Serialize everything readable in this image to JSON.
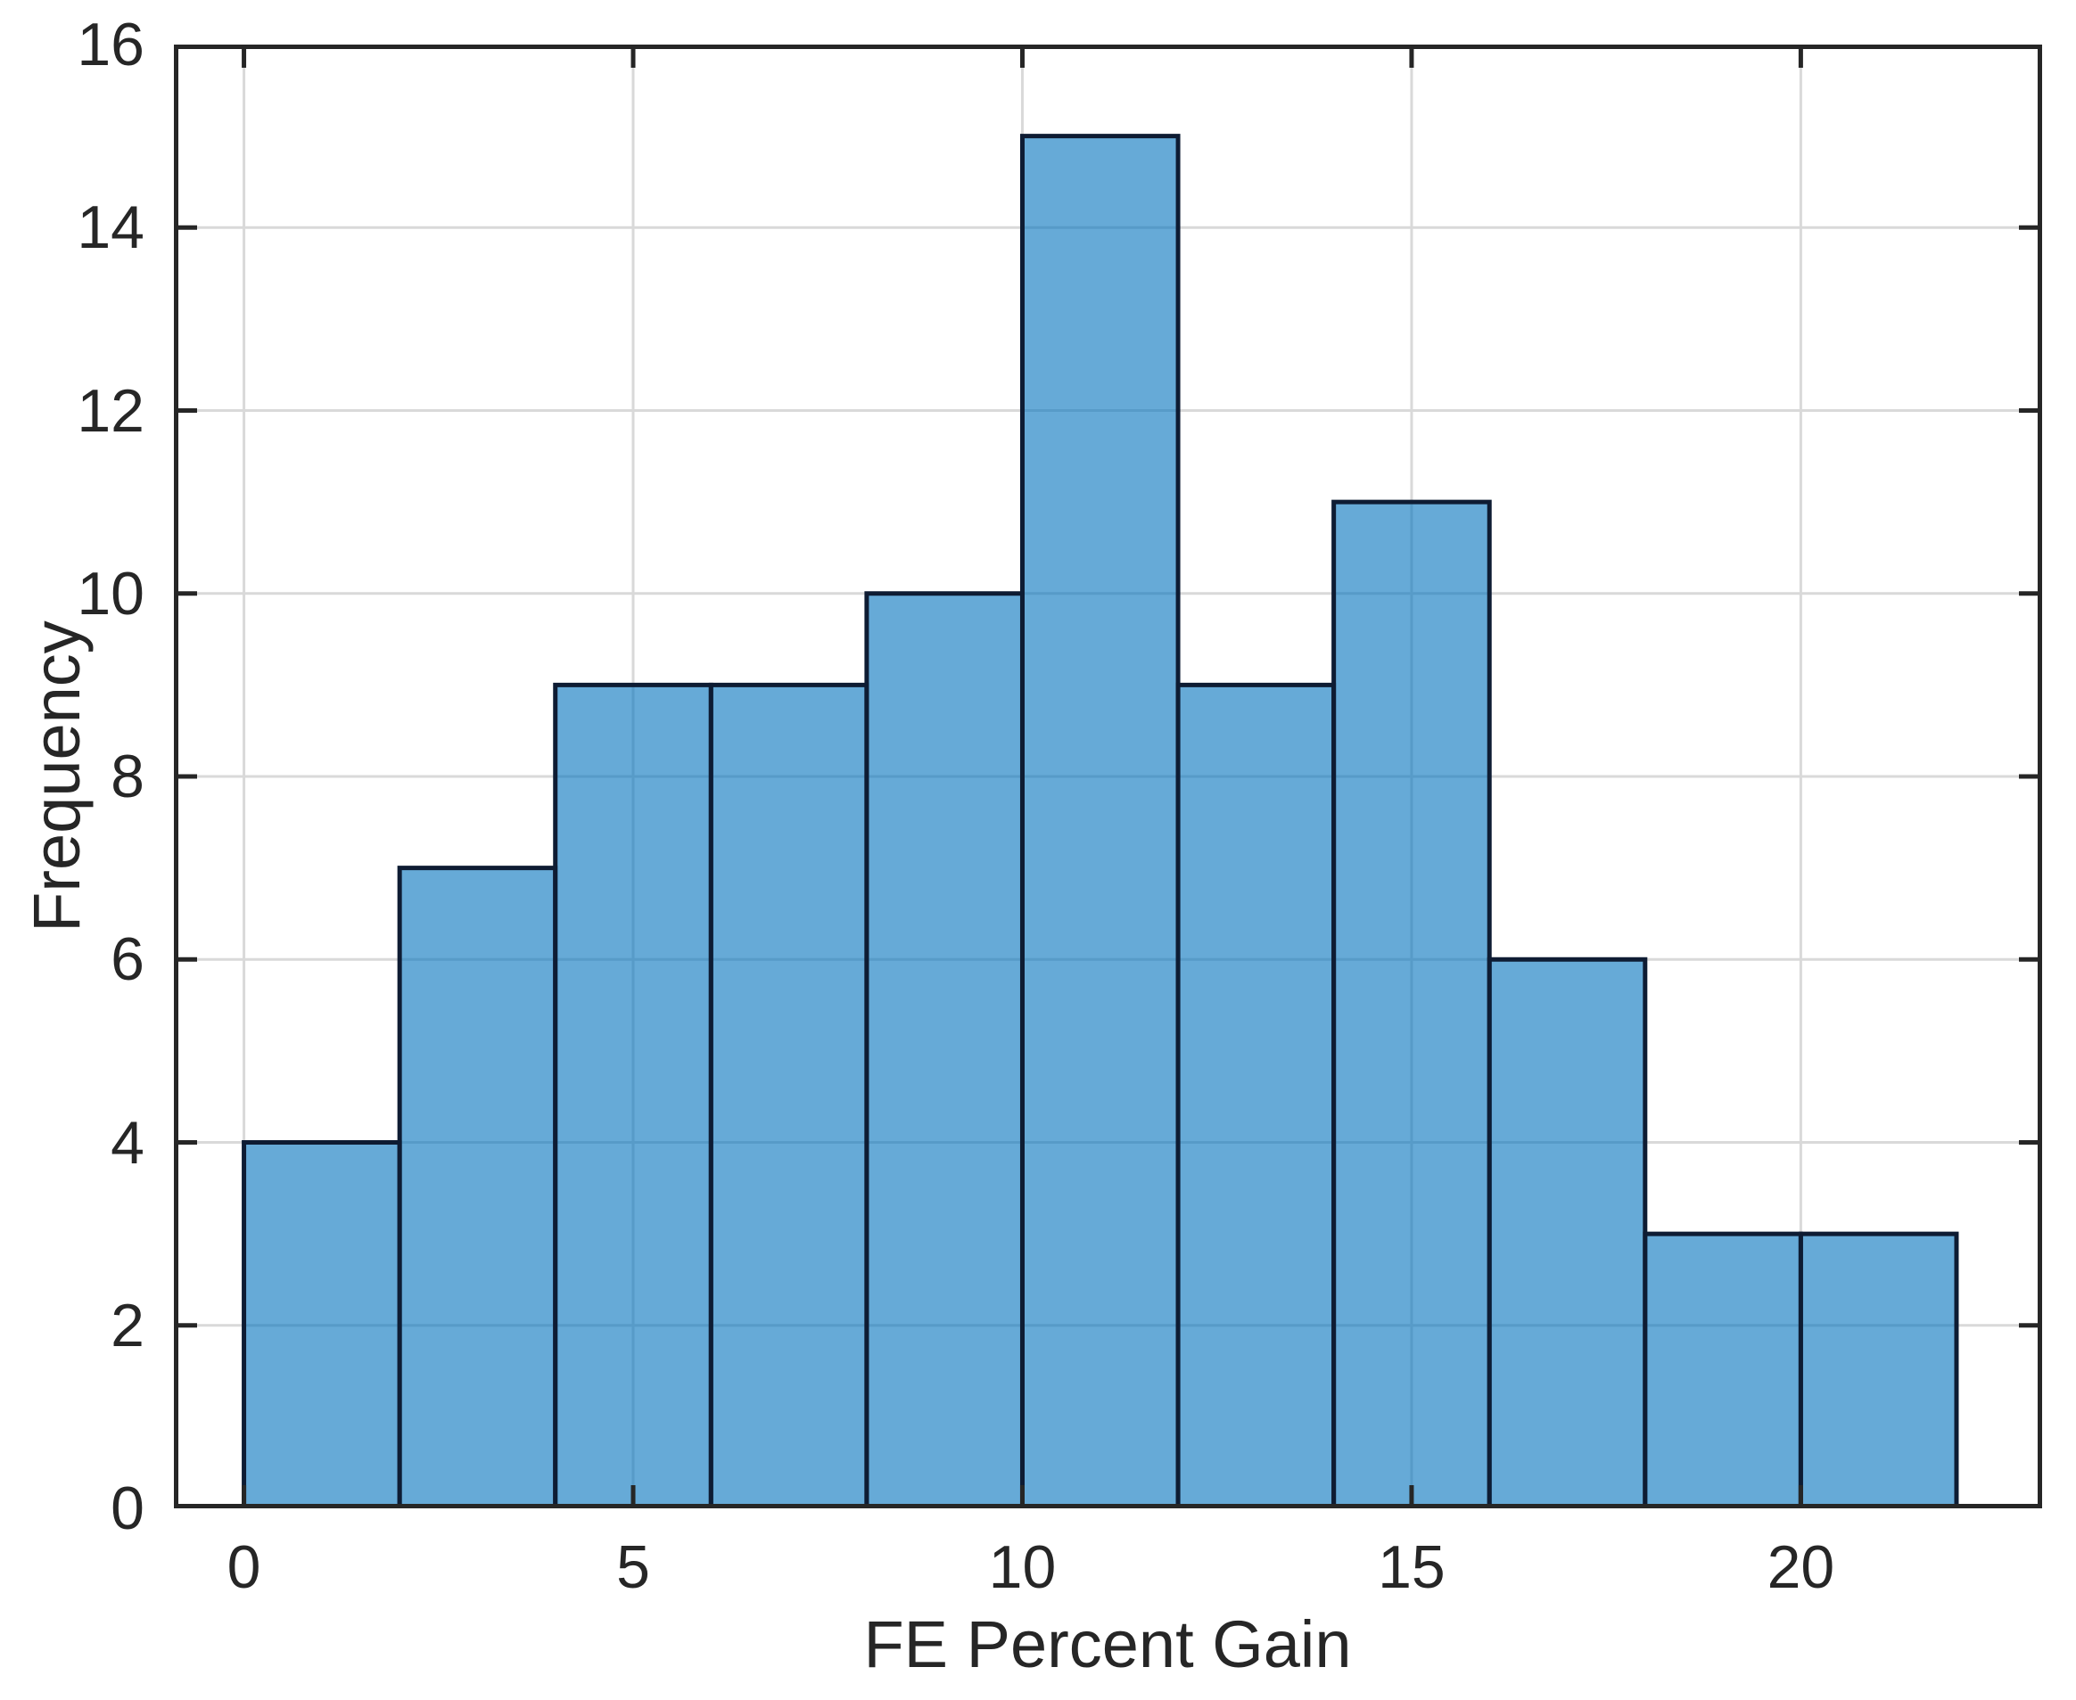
{
  "figure": {
    "title": "",
    "xlabel": "FE Percent Gain",
    "ylabel": "Frequency",
    "background_color": "#FFFFFF"
  },
  "chart_data": {
    "type": "bar",
    "subtype": "histogram",
    "title": "",
    "xlabel": "FE Percent Gain",
    "ylabel": "Frequency",
    "bin_edges": [
      0,
      2,
      4,
      6,
      8,
      10,
      12,
      14,
      16,
      18,
      20,
      22
    ],
    "frequencies": [
      4,
      7,
      9,
      9,
      10,
      15,
      9,
      11,
      6,
      3,
      3
    ],
    "total_count": 86,
    "xlim": [
      -0.9,
      23.1
    ],
    "ylim": [
      0,
      16
    ],
    "xticks": [
      0,
      5,
      10,
      15,
      20
    ],
    "yticks": [
      0,
      2,
      4,
      6,
      8,
      10,
      12,
      14,
      16
    ],
    "grid": true,
    "legend": null,
    "style": {
      "bar_face_color": "#0072BD",
      "bar_face_alpha": 0.6,
      "bar_edge_color": "#0E1C33",
      "axis_color": "#262626",
      "grid_color": "#D9D9D9",
      "tick_direction": "in"
    }
  },
  "layout_note": "single axes, box on, no title, no legend"
}
